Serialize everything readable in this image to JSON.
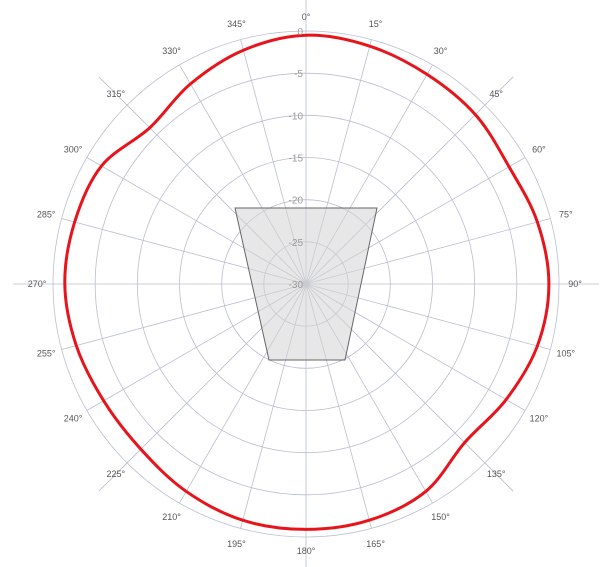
{
  "chart_data": {
    "type": "polar-line",
    "title": "",
    "radial_axis": {
      "min": -30,
      "max": 0,
      "ticks": [
        0,
        -5,
        -10,
        -15,
        -20,
        -25,
        -30
      ],
      "tick_labels": [
        "0",
        "-5",
        "-10",
        "-15",
        "-20",
        "-25",
        "-30"
      ]
    },
    "angular_axis": {
      "zero_direction": "top",
      "direction": "clockwise",
      "ticks": [
        0,
        15,
        30,
        45,
        60,
        75,
        90,
        105,
        120,
        135,
        150,
        165,
        180,
        195,
        210,
        225,
        240,
        255,
        270,
        285,
        300,
        315,
        330,
        345
      ],
      "tick_labels": [
        "0°",
        "15°",
        "30°",
        "45°",
        "60°",
        "75°",
        "90°",
        "105°",
        "120°",
        "135°",
        "150°",
        "165°",
        "180°",
        "195°",
        "210°",
        "225°",
        "240°",
        "255°",
        "270°",
        "285°",
        "300°",
        "315°",
        "330°",
        "345°"
      ]
    },
    "grid": true,
    "legend": "none",
    "series": [
      {
        "color": "#e8141b",
        "angles_deg": [
          0,
          15,
          30,
          45,
          60,
          75,
          90,
          105,
          120,
          135,
          150,
          165,
          180,
          195,
          210,
          225,
          240,
          255,
          270,
          285,
          300,
          315,
          330,
          345
        ],
        "values_db": [
          -0.5,
          -0.8,
          -1.3,
          -1.6,
          -2.2,
          -1.6,
          -1.2,
          -1.6,
          -2.6,
          -3.4,
          -1.6,
          -1.0,
          -0.9,
          -1.0,
          -1.6,
          -2.3,
          -2.3,
          -1.8,
          -1.4,
          -1.6,
          -2.0,
          -3.8,
          -2.6,
          -1.3
        ]
      }
    ],
    "annotation": {
      "type": "trapezoid-region",
      "fill": "#d3d3d3",
      "stroke": "#666666"
    }
  }
}
